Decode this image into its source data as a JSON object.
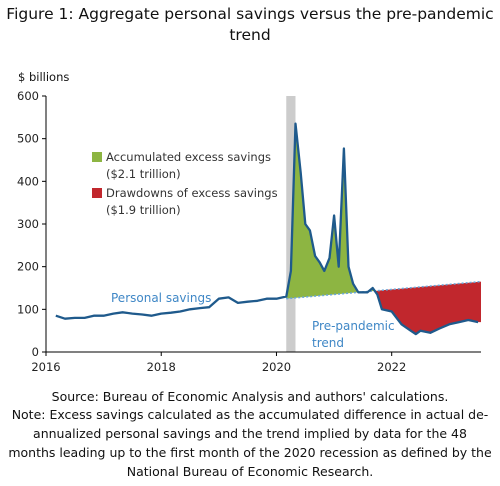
{
  "title": "Figure 1: Aggregate personal savings versus the pre-pandemic trend",
  "source": "Source: Bureau of Economic Analysis and authors' calculations.",
  "note": "Note: Excess savings calculated as the accumulated difference in actual de-annualized personal savings and the trend implied by data for the 48 months leading up to the first month of the 2020 recession as defined by the National Bureau of Economic Research.",
  "colors": {
    "savings_line": "#1f5a8c",
    "trend_line": "#6aa6d8",
    "excess_fill": "#8db542",
    "drawdown_fill": "#c1272d",
    "recession_shade": "#cccccc",
    "annotation_text": "#3f87c6"
  },
  "chart_data": {
    "type": "area",
    "title": "",
    "ylabel_top": "$ billions",
    "xlim": [
      2016,
      2023.55
    ],
    "ylim": [
      0,
      600
    ],
    "yticks": [
      "0",
      "100",
      "200",
      "300",
      "400",
      "500",
      "600"
    ],
    "xticks": [
      "2016",
      "2018",
      "2020",
      "2022"
    ],
    "recession": [
      2020.17,
      2020.33
    ],
    "legend": [
      {
        "label": "Accumulated excess savings",
        "sublabel": "($2.1 trillion)",
        "color": "#8db542"
      },
      {
        "label": "Drawdowns of excess savings",
        "sublabel": "($1.9 trillion)",
        "color": "#c1272d"
      }
    ],
    "annotations": {
      "personal_savings": "Personal savings",
      "trend_line1": "Pre-pandemic",
      "trend_line2": "trend"
    },
    "series": [
      {
        "name": "Personal savings",
        "x": [
          2016.17,
          2016.33,
          2016.5,
          2016.67,
          2016.83,
          2017.0,
          2017.17,
          2017.33,
          2017.5,
          2017.67,
          2017.83,
          2018.0,
          2018.17,
          2018.33,
          2018.5,
          2018.67,
          2018.83,
          2019.0,
          2019.17,
          2019.33,
          2019.5,
          2019.67,
          2019.83,
          2020.0,
          2020.17,
          2020.25,
          2020.33,
          2020.42,
          2020.5,
          2020.58,
          2020.67,
          2020.75,
          2020.83,
          2020.92,
          2021.0,
          2021.08,
          2021.17,
          2021.25,
          2021.33,
          2021.42,
          2021.5,
          2021.58,
          2021.67,
          2021.75,
          2021.83,
          2022.0,
          2022.17,
          2022.33,
          2022.42,
          2022.5,
          2022.67,
          2022.83,
          2023.0,
          2023.17,
          2023.33,
          2023.5
        ],
        "y": [
          85,
          78,
          80,
          80,
          85,
          85,
          90,
          93,
          90,
          88,
          85,
          90,
          92,
          95,
          100,
          103,
          105,
          125,
          128,
          115,
          118,
          120,
          125,
          125,
          130,
          190,
          535,
          420,
          300,
          285,
          225,
          210,
          190,
          220,
          320,
          200,
          477,
          200,
          160,
          140,
          140,
          140,
          150,
          135,
          100,
          95,
          65,
          50,
          42,
          50,
          45,
          55,
          65,
          70,
          75,
          70
        ]
      },
      {
        "name": "Pre-pandemic trend",
        "x": [
          2020.17,
          2023.55
        ],
        "y": [
          125,
          165
        ]
      }
    ]
  }
}
